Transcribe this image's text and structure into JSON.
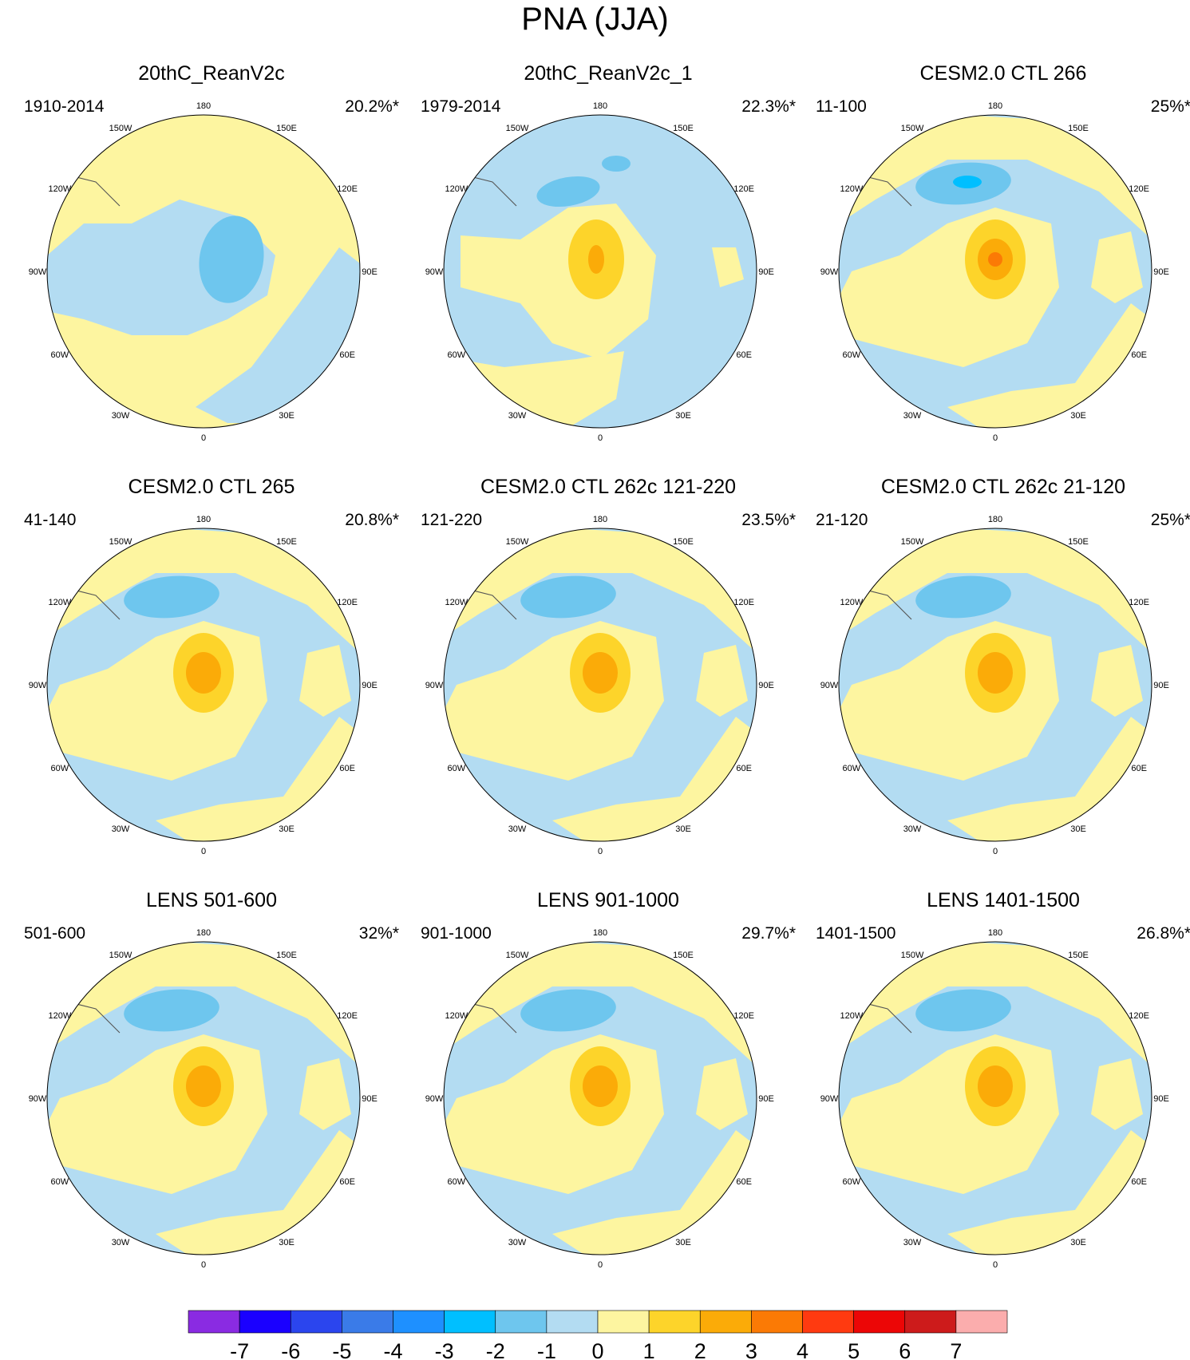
{
  "figure": {
    "title": "PNA (JJA)",
    "longitude_labels": [
      "180",
      "150E",
      "120E",
      "90E",
      "60E",
      "30E",
      "0",
      "30W",
      "60W",
      "90W",
      "120W",
      "150W"
    ]
  },
  "panels": [
    {
      "title": "20thC_ReanV2c",
      "period": "1910-2014",
      "percent": "20.2%*",
      "pattern": "rean"
    },
    {
      "title": "20thC_ReanV2c_1",
      "period": "1979-2014",
      "percent": "22.3%*",
      "pattern": "rean1"
    },
    {
      "title": "CESM2.0 CTL 266",
      "period": "11-100",
      "percent": "25%*",
      "pattern": "model",
      "center_level": 3
    },
    {
      "title": "CESM2.0 CTL 265",
      "period": "41-140",
      "percent": "20.8%*",
      "pattern": "model",
      "center_level": 2
    },
    {
      "title": "CESM2.0 CTL 262c 121-220",
      "period": "121-220",
      "percent": "23.5%*",
      "pattern": "model",
      "center_level": 2
    },
    {
      "title": "CESM2.0 CTL 262c 21-120",
      "period": "21-120",
      "percent": "25%*",
      "pattern": "model",
      "center_level": 2
    },
    {
      "title": "LENS 501-600",
      "period": "501-600",
      "percent": "32%*",
      "pattern": "model",
      "center_level": 2
    },
    {
      "title": "LENS 901-1000",
      "period": "901-1000",
      "percent": "29.7%*",
      "pattern": "model",
      "center_level": 2
    },
    {
      "title": "LENS 1401-1500",
      "period": "1401-1500",
      "percent": "26.8%*",
      "pattern": "model",
      "center_level": 2
    }
  ],
  "colorbar": {
    "labels": [
      "-7",
      "-6",
      "-5",
      "-4",
      "-3",
      "-2",
      "-1",
      "0",
      "1",
      "2",
      "3",
      "4",
      "5",
      "6",
      "7"
    ],
    "colors": [
      "#8a2be2",
      "#1a00ff",
      "#2b45ee",
      "#3a7be8",
      "#1e90ff",
      "#00bfff",
      "#6ec6ee",
      "#b3dcf2",
      "#fdf5a0",
      "#fdd42a",
      "#fbab08",
      "#fb7a05",
      "#ff3a10",
      "#ec0606",
      "#cd1b1b",
      "#fbadad"
    ]
  },
  "palette": {
    "neg1": "#b3dcf2",
    "neg2": "#6ec6ee",
    "neg3": "#00bfff",
    "pos1": "#fdf5a0",
    "pos2": "#fdd42a",
    "pos3": "#fbab08",
    "pos4": "#fb7a05",
    "coast": "#555555"
  }
}
